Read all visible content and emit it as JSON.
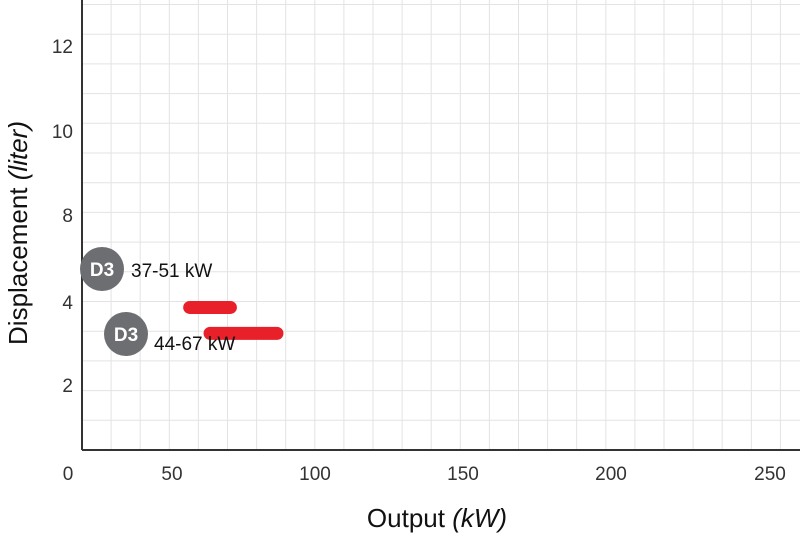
{
  "chart_data": {
    "type": "bar",
    "orientation": "horizontal-range",
    "xlabel": "Output",
    "xlabel_unit": "(kW)",
    "ylabel": "Displacement",
    "ylabel_unit": "(liter)",
    "xlim": [
      0,
      250
    ],
    "ylim": [
      0,
      13.6
    ],
    "x_ticks": [
      "0",
      "50",
      "100",
      "150",
      "200",
      "250"
    ],
    "y_ticks": [
      "2",
      "4",
      "8",
      "10",
      "12"
    ],
    "grid": true,
    "series": [
      {
        "badge": "D3",
        "label": "37-51 kW",
        "x_start": 37,
        "x_end": 51,
        "y": 4.4,
        "color": "#e8202a",
        "badge_color": "#6d6e71"
      },
      {
        "badge": "D3",
        "label": "44-67 kW",
        "x_start": 44,
        "x_end": 67,
        "y": 3.6,
        "color": "#e8202a",
        "badge_color": "#6d6e71"
      }
    ]
  }
}
